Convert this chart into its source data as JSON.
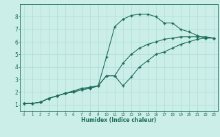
{
  "xlabel": "Humidex (Indice chaleur)",
  "bg_color": "#cceee8",
  "grid_color": "#aaddd6",
  "line_color": "#1a6b5a",
  "xlim": [
    -0.5,
    23.5
  ],
  "ylim": [
    0.5,
    9.0
  ],
  "xticks": [
    0,
    1,
    2,
    3,
    4,
    5,
    6,
    7,
    8,
    9,
    10,
    11,
    12,
    13,
    14,
    15,
    16,
    17,
    18,
    19,
    20,
    21,
    22,
    23
  ],
  "yticks": [
    1,
    2,
    3,
    4,
    5,
    6,
    7,
    8
  ],
  "line1_x": [
    0,
    1,
    2,
    3,
    4,
    5,
    6,
    7,
    8,
    9,
    10,
    11,
    12,
    13,
    14,
    15,
    16,
    17,
    18,
    19,
    20,
    21,
    22,
    23
  ],
  "line1_y": [
    1.1,
    1.1,
    1.2,
    1.5,
    1.7,
    1.9,
    2.1,
    2.3,
    2.4,
    2.5,
    4.8,
    7.2,
    7.8,
    8.1,
    8.2,
    8.2,
    8.0,
    7.5,
    7.5,
    7.0,
    6.8,
    6.5,
    6.3,
    6.3
  ],
  "line2_x": [
    0,
    1,
    2,
    3,
    4,
    5,
    6,
    7,
    8,
    9,
    10,
    11,
    12,
    13,
    14,
    15,
    16,
    17,
    18,
    19,
    20,
    21,
    22,
    23
  ],
  "line2_y": [
    1.1,
    1.1,
    1.2,
    1.5,
    1.7,
    1.9,
    2.0,
    2.2,
    2.3,
    2.5,
    3.3,
    3.3,
    4.3,
    5.0,
    5.5,
    5.8,
    6.0,
    6.2,
    6.3,
    6.4,
    6.4,
    6.4,
    6.4,
    6.3
  ],
  "line3_x": [
    0,
    1,
    2,
    3,
    4,
    5,
    6,
    7,
    8,
    9,
    10,
    11,
    12,
    13,
    14,
    15,
    16,
    17,
    18,
    19,
    20,
    21,
    22,
    23
  ],
  "line3_y": [
    1.1,
    1.1,
    1.2,
    1.5,
    1.7,
    1.9,
    2.0,
    2.2,
    2.3,
    2.5,
    3.3,
    3.3,
    2.5,
    3.2,
    4.0,
    4.5,
    5.0,
    5.2,
    5.5,
    5.8,
    6.0,
    6.2,
    6.3,
    6.3
  ]
}
